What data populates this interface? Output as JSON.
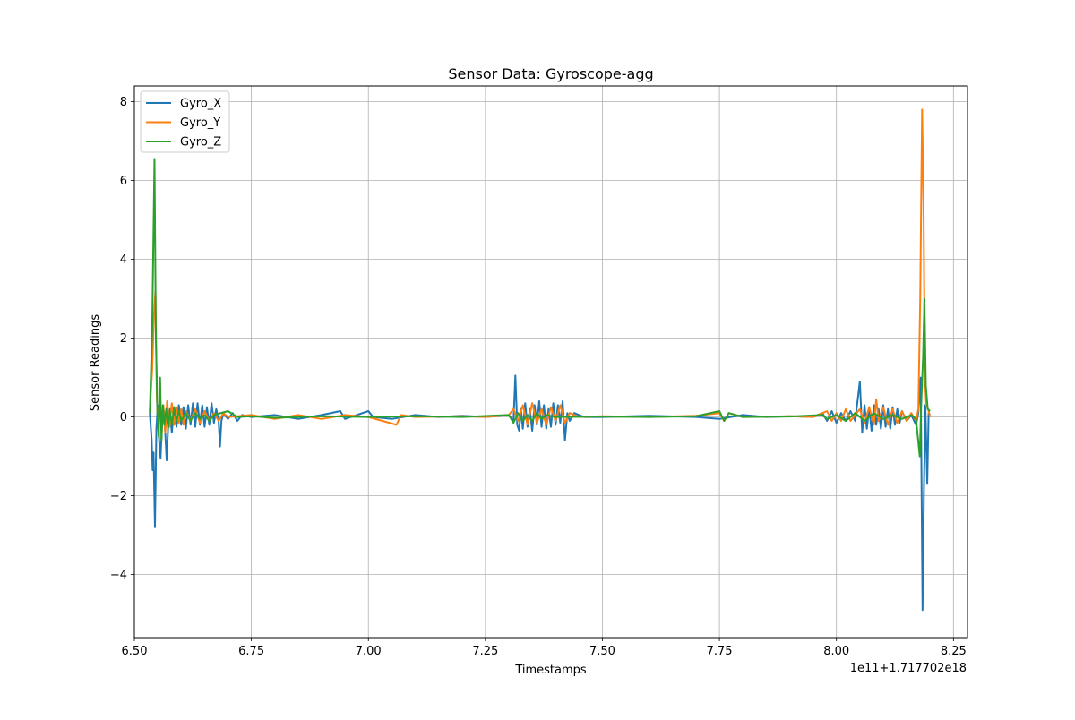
{
  "chart_data": {
    "type": "line",
    "title": "Sensor Data: Gyroscope-agg",
    "xlabel": "Timestamps",
    "ylabel": "Sensor Readings",
    "x_offset_label": "1e11+1.717702e18",
    "xlim": [
      6.5,
      8.28
    ],
    "ylim": [
      -5.6,
      8.4
    ],
    "x_ticks": [
      6.5,
      6.75,
      7.0,
      7.25,
      7.5,
      7.75,
      8.0,
      8.25
    ],
    "x_tick_labels": [
      "6.50",
      "6.75",
      "7.00",
      "7.25",
      "7.50",
      "7.75",
      "8.00",
      "8.25"
    ],
    "y_ticks": [
      -4,
      -2,
      0,
      2,
      4,
      6,
      8
    ],
    "y_tick_labels": [
      "−4",
      "−2",
      "0",
      "2",
      "4",
      "6",
      "8"
    ],
    "grid": true,
    "legend_position": "top-left",
    "series": [
      {
        "name": "Gyro_X",
        "color": "#1f77b4",
        "points": [
          [
            6.533,
            0.1
          ],
          [
            6.537,
            -0.6
          ],
          [
            6.539,
            -1.35
          ],
          [
            6.541,
            -0.9
          ],
          [
            6.544,
            -2.8
          ],
          [
            6.547,
            -0.3
          ],
          [
            6.55,
            0.3
          ],
          [
            6.553,
            -0.6
          ],
          [
            6.556,
            -1.05
          ],
          [
            6.559,
            -0.2
          ],
          [
            6.563,
            0.15
          ],
          [
            6.566,
            -0.4
          ],
          [
            6.569,
            -1.1
          ],
          [
            6.572,
            -0.3
          ],
          [
            6.576,
            0.2
          ],
          [
            6.58,
            -0.4
          ],
          [
            6.585,
            0.25
          ],
          [
            6.59,
            -0.25
          ],
          [
            6.595,
            0.3
          ],
          [
            6.6,
            -0.2
          ],
          [
            6.605,
            0.25
          ],
          [
            6.61,
            -0.3
          ],
          [
            6.615,
            0.3
          ],
          [
            6.62,
            -0.2
          ],
          [
            6.625,
            0.35
          ],
          [
            6.63,
            -0.25
          ],
          [
            6.635,
            0.35
          ],
          [
            6.64,
            -0.2
          ],
          [
            6.645,
            0.3
          ],
          [
            6.65,
            -0.25
          ],
          [
            6.655,
            0.25
          ],
          [
            6.66,
            -0.2
          ],
          [
            6.665,
            0.35
          ],
          [
            6.67,
            -0.15
          ],
          [
            6.675,
            0.2
          ],
          [
            6.68,
            -0.1
          ],
          [
            6.683,
            -0.75
          ],
          [
            6.686,
            -0.1
          ],
          [
            6.69,
            0.1
          ],
          [
            6.7,
            -0.05
          ],
          [
            6.71,
            0.1
          ],
          [
            6.72,
            -0.1
          ],
          [
            6.73,
            0.05
          ],
          [
            6.75,
            0.0
          ],
          [
            6.8,
            0.05
          ],
          [
            6.85,
            -0.05
          ],
          [
            6.9,
            0.05
          ],
          [
            6.94,
            0.15
          ],
          [
            6.95,
            -0.05
          ],
          [
            7.0,
            0.15
          ],
          [
            7.01,
            0.0
          ],
          [
            7.05,
            -0.05
          ],
          [
            7.1,
            0.05
          ],
          [
            7.15,
            0.0
          ],
          [
            7.2,
            0.03
          ],
          [
            7.25,
            0.0
          ],
          [
            7.3,
            0.05
          ],
          [
            7.31,
            -0.1
          ],
          [
            7.314,
            1.05
          ],
          [
            7.318,
            -0.2
          ],
          [
            7.322,
            -0.35
          ],
          [
            7.326,
            0.2
          ],
          [
            7.33,
            -0.3
          ],
          [
            7.335,
            0.35
          ],
          [
            7.34,
            -0.25
          ],
          [
            7.345,
            0.2
          ],
          [
            7.35,
            -0.35
          ],
          [
            7.355,
            0.3
          ],
          [
            7.36,
            -0.2
          ],
          [
            7.365,
            0.4
          ],
          [
            7.37,
            -0.25
          ],
          [
            7.375,
            0.3
          ],
          [
            7.38,
            -0.3
          ],
          [
            7.385,
            0.2
          ],
          [
            7.39,
            -0.25
          ],
          [
            7.395,
            0.35
          ],
          [
            7.4,
            -0.2
          ],
          [
            7.405,
            0.3
          ],
          [
            7.41,
            -0.15
          ],
          [
            7.415,
            0.4
          ],
          [
            7.42,
            -0.6
          ],
          [
            7.425,
            0.1
          ],
          [
            7.43,
            -0.1
          ],
          [
            7.44,
            0.1
          ],
          [
            7.46,
            0.0
          ],
          [
            7.5,
            0.0
          ],
          [
            7.6,
            0.03
          ],
          [
            7.7,
            0.0
          ],
          [
            7.75,
            -0.05
          ],
          [
            7.8,
            0.05
          ],
          [
            7.85,
            0.0
          ],
          [
            7.9,
            0.02
          ],
          [
            7.95,
            0.0
          ],
          [
            7.97,
            0.1
          ],
          [
            7.98,
            -0.1
          ],
          [
            7.99,
            0.15
          ],
          [
            8.0,
            -0.15
          ],
          [
            8.01,
            0.1
          ],
          [
            8.02,
            -0.1
          ],
          [
            8.03,
            0.15
          ],
          [
            8.04,
            -0.1
          ],
          [
            8.05,
            0.9
          ],
          [
            8.055,
            -0.4
          ],
          [
            8.06,
            0.3
          ],
          [
            8.065,
            -0.3
          ],
          [
            8.07,
            0.25
          ],
          [
            8.075,
            -0.35
          ],
          [
            8.08,
            0.3
          ],
          [
            8.085,
            -0.2
          ],
          [
            8.09,
            0.2
          ],
          [
            8.095,
            -0.3
          ],
          [
            8.1,
            0.3
          ],
          [
            8.105,
            -0.25
          ],
          [
            8.11,
            0.2
          ],
          [
            8.115,
            -0.3
          ],
          [
            8.12,
            0.25
          ],
          [
            8.125,
            -0.2
          ],
          [
            8.13,
            0.2
          ],
          [
            8.135,
            -0.15
          ],
          [
            8.14,
            0.15
          ],
          [
            8.15,
            -0.1
          ],
          [
            8.16,
            0.05
          ],
          [
            8.17,
            -0.2
          ],
          [
            8.175,
            0.1
          ],
          [
            8.18,
            1.0
          ],
          [
            8.184,
            -4.9
          ],
          [
            8.187,
            -1.8
          ],
          [
            8.19,
            0.3
          ],
          [
            8.194,
            -1.7
          ],
          [
            8.197,
            0.1
          ],
          [
            8.2,
            0.05
          ]
        ]
      },
      {
        "name": "Gyro_Y",
        "color": "#ff7f0e",
        "points": [
          [
            6.533,
            0.15
          ],
          [
            6.538,
            1.2
          ],
          [
            6.542,
            2.6
          ],
          [
            6.545,
            3.2
          ],
          [
            6.548,
            0.5
          ],
          [
            6.551,
            -0.3
          ],
          [
            6.554,
            0.4
          ],
          [
            6.558,
            -0.2
          ],
          [
            6.562,
            0.3
          ],
          [
            6.566,
            -0.4
          ],
          [
            6.57,
            0.4
          ],
          [
            6.575,
            -0.25
          ],
          [
            6.58,
            0.35
          ],
          [
            6.585,
            -0.2
          ],
          [
            6.59,
            0.25
          ],
          [
            6.595,
            -0.15
          ],
          [
            6.6,
            0.2
          ],
          [
            6.605,
            -0.2
          ],
          [
            6.61,
            0.15
          ],
          [
            6.62,
            -0.1
          ],
          [
            6.63,
            0.2
          ],
          [
            6.64,
            -0.15
          ],
          [
            6.65,
            0.15
          ],
          [
            6.66,
            -0.1
          ],
          [
            6.67,
            0.1
          ],
          [
            6.68,
            -0.1
          ],
          [
            6.69,
            0.1
          ],
          [
            6.7,
            0.0
          ],
          [
            6.75,
            0.05
          ],
          [
            6.8,
            -0.05
          ],
          [
            6.85,
            0.05
          ],
          [
            6.9,
            -0.05
          ],
          [
            6.95,
            0.05
          ],
          [
            7.0,
            0.0
          ],
          [
            7.06,
            -0.2
          ],
          [
            7.07,
            0.05
          ],
          [
            7.1,
            0.0
          ],
          [
            7.2,
            0.02
          ],
          [
            7.25,
            0.0
          ],
          [
            7.3,
            0.05
          ],
          [
            7.31,
            0.2
          ],
          [
            7.32,
            -0.1
          ],
          [
            7.33,
            0.3
          ],
          [
            7.34,
            -0.2
          ],
          [
            7.35,
            0.35
          ],
          [
            7.36,
            -0.15
          ],
          [
            7.37,
            0.2
          ],
          [
            7.38,
            -0.2
          ],
          [
            7.39,
            0.25
          ],
          [
            7.4,
            -0.1
          ],
          [
            7.41,
            0.3
          ],
          [
            7.42,
            -0.15
          ],
          [
            7.43,
            0.1
          ],
          [
            7.45,
            0.0
          ],
          [
            7.5,
            0.02
          ],
          [
            7.6,
            0.0
          ],
          [
            7.7,
            0.03
          ],
          [
            7.75,
            0.1
          ],
          [
            7.76,
            -0.1
          ],
          [
            7.77,
            0.1
          ],
          [
            7.8,
            0.0
          ],
          [
            7.9,
            0.02
          ],
          [
            7.95,
            0.0
          ],
          [
            7.98,
            0.15
          ],
          [
            7.99,
            -0.1
          ],
          [
            8.0,
            0.1
          ],
          [
            8.01,
            -0.1
          ],
          [
            8.02,
            0.2
          ],
          [
            8.03,
            -0.1
          ],
          [
            8.05,
            0.2
          ],
          [
            8.06,
            -0.15
          ],
          [
            8.07,
            0.25
          ],
          [
            8.08,
            -0.2
          ],
          [
            8.085,
            0.45
          ],
          [
            8.09,
            -0.1
          ],
          [
            8.1,
            0.25
          ],
          [
            8.11,
            -0.2
          ],
          [
            8.12,
            0.2
          ],
          [
            8.13,
            -0.15
          ],
          [
            8.14,
            0.15
          ],
          [
            8.15,
            -0.1
          ],
          [
            8.16,
            0.1
          ],
          [
            8.17,
            -0.1
          ],
          [
            8.175,
            0.2
          ],
          [
            8.179,
            3.0
          ],
          [
            8.183,
            7.8
          ],
          [
            8.186,
            5.5
          ],
          [
            8.189,
            1.0
          ],
          [
            8.192,
            0.3
          ],
          [
            8.196,
            0.2
          ],
          [
            8.2,
            0.0
          ]
        ]
      },
      {
        "name": "Gyro_Z",
        "color": "#2ca02c",
        "points": [
          [
            6.533,
            0.1
          ],
          [
            6.538,
            2.2
          ],
          [
            6.543,
            6.55
          ],
          [
            6.546,
            2.0
          ],
          [
            6.549,
            0.2
          ],
          [
            6.552,
            -0.5
          ],
          [
            6.555,
            1.0
          ],
          [
            6.558,
            -0.6
          ],
          [
            6.561,
            0.3
          ],
          [
            6.564,
            -0.2
          ],
          [
            6.568,
            0.2
          ],
          [
            6.572,
            -0.3
          ],
          [
            6.576,
            0.15
          ],
          [
            6.58,
            -0.2
          ],
          [
            6.585,
            0.25
          ],
          [
            6.59,
            -0.1
          ],
          [
            6.595,
            0.15
          ],
          [
            6.6,
            -0.1
          ],
          [
            6.61,
            0.1
          ],
          [
            6.62,
            -0.1
          ],
          [
            6.63,
            0.1
          ],
          [
            6.64,
            -0.05
          ],
          [
            6.65,
            0.05
          ],
          [
            6.66,
            -0.1
          ],
          [
            6.67,
            0.05
          ],
          [
            6.7,
            0.15
          ],
          [
            6.72,
            0.0
          ],
          [
            6.75,
            0.02
          ],
          [
            6.8,
            -0.02
          ],
          [
            6.9,
            0.02
          ],
          [
            7.0,
            0.0
          ],
          [
            7.1,
            0.02
          ],
          [
            7.2,
            0.0
          ],
          [
            7.3,
            0.05
          ],
          [
            7.31,
            -0.15
          ],
          [
            7.32,
            0.1
          ],
          [
            7.33,
            -0.1
          ],
          [
            7.34,
            0.05
          ],
          [
            7.35,
            -0.1
          ],
          [
            7.36,
            0.1
          ],
          [
            7.37,
            -0.05
          ],
          [
            7.38,
            0.05
          ],
          [
            7.4,
            0.0
          ],
          [
            7.5,
            0.01
          ],
          [
            7.6,
            0.0
          ],
          [
            7.7,
            0.02
          ],
          [
            7.75,
            0.15
          ],
          [
            7.76,
            -0.1
          ],
          [
            7.77,
            0.1
          ],
          [
            7.8,
            0.0
          ],
          [
            7.9,
            0.01
          ],
          [
            7.97,
            0.05
          ],
          [
            7.98,
            -0.05
          ],
          [
            8.0,
            0.05
          ],
          [
            8.02,
            -0.1
          ],
          [
            8.04,
            0.1
          ],
          [
            8.06,
            -0.1
          ],
          [
            8.08,
            0.1
          ],
          [
            8.1,
            -0.05
          ],
          [
            8.12,
            0.05
          ],
          [
            8.14,
            -0.05
          ],
          [
            8.16,
            0.05
          ],
          [
            8.17,
            -0.05
          ],
          [
            8.178,
            -1.0
          ],
          [
            8.181,
            0.3
          ],
          [
            8.185,
            1.5
          ],
          [
            8.188,
            3.0
          ],
          [
            8.191,
            0.8
          ],
          [
            8.195,
            0.2
          ],
          [
            8.2,
            0.15
          ]
        ]
      }
    ]
  }
}
